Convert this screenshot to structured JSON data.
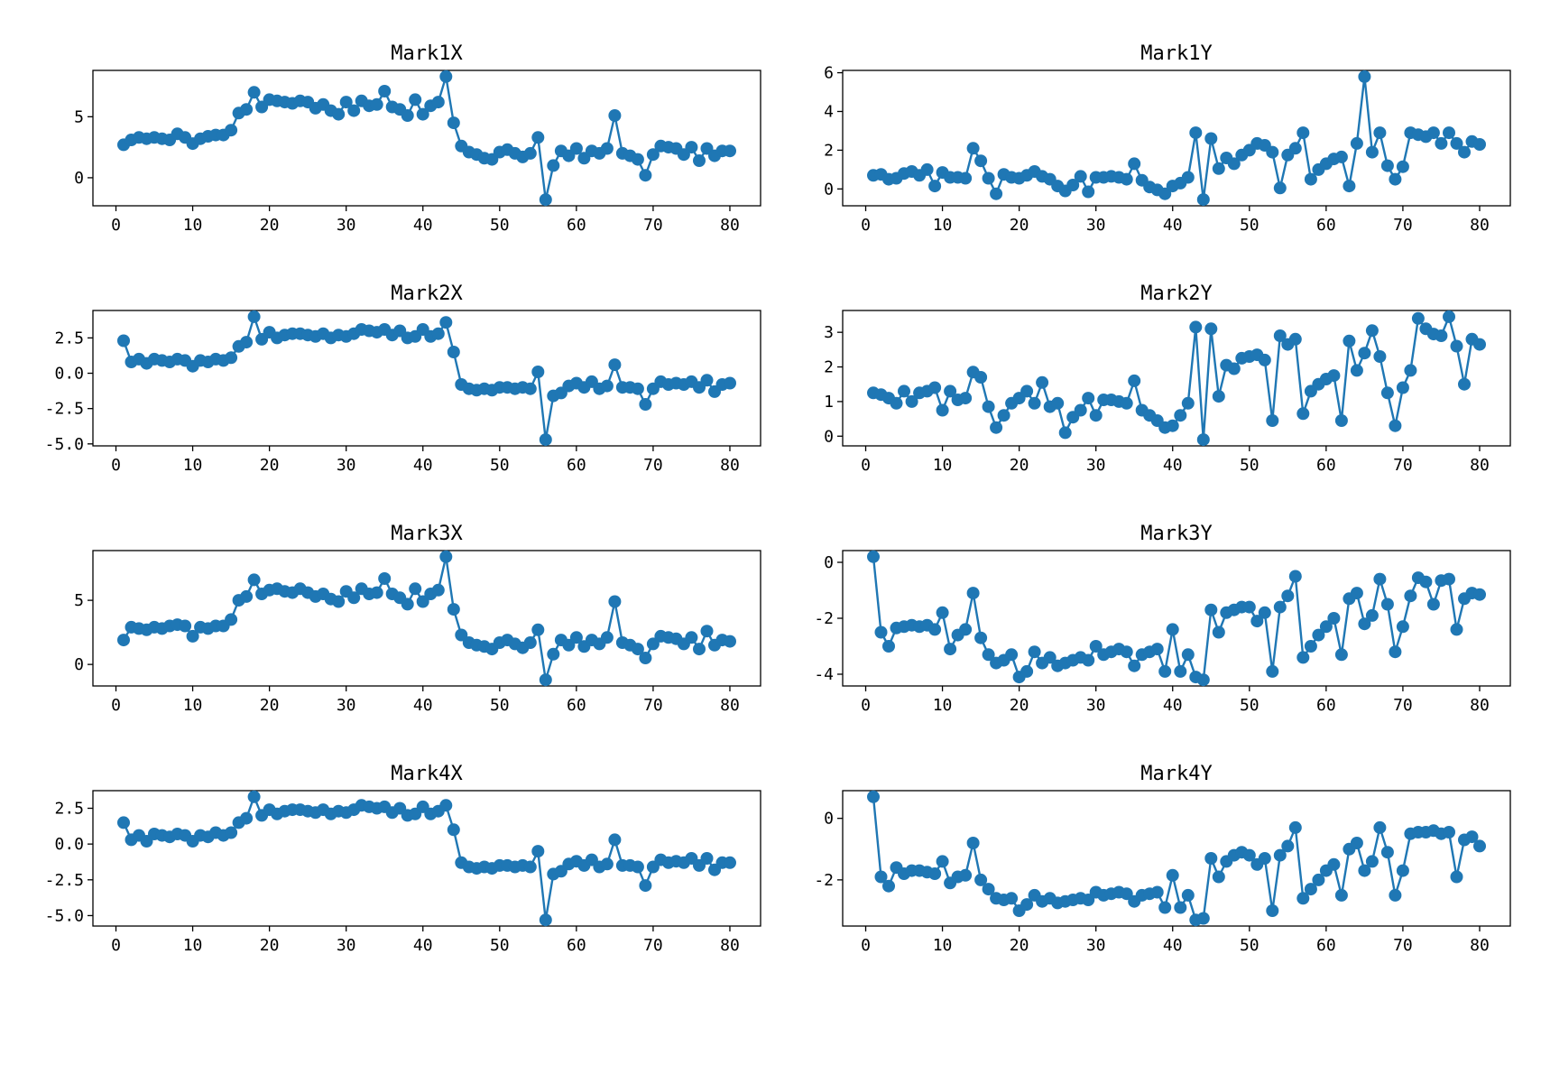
{
  "figure": {
    "background": "#ffffff",
    "line_color": "#1f77b4",
    "marker_shape": "circle",
    "marker_radius": 7,
    "line_width": 2.4,
    "grid": false,
    "legend": "none"
  },
  "chart_data": [
    {
      "type": "line",
      "title": "Mark1X",
      "xlabel": "",
      "ylabel": "",
      "x_start": 1,
      "x_step": 1,
      "xlim": [
        -3,
        84
      ],
      "xticks": [
        0,
        10,
        20,
        30,
        40,
        50,
        60,
        70,
        80
      ],
      "ylim": [
        -2.3,
        8.8
      ],
      "yticks": [
        0,
        5
      ],
      "ytick_labels": [
        "0",
        "5"
      ],
      "values": [
        2.7,
        3.1,
        3.3,
        3.2,
        3.3,
        3.2,
        3.1,
        3.6,
        3.3,
        2.8,
        3.2,
        3.4,
        3.5,
        3.5,
        3.9,
        5.3,
        5.6,
        7.0,
        5.8,
        6.4,
        6.3,
        6.2,
        6.1,
        6.3,
        6.2,
        5.7,
        6.0,
        5.5,
        5.2,
        6.2,
        5.5,
        6.3,
        5.9,
        6.0,
        7.1,
        5.8,
        5.6,
        5.1,
        6.4,
        5.2,
        5.9,
        6.2,
        8.3,
        4.5,
        2.6,
        2.1,
        1.9,
        1.6,
        1.5,
        2.1,
        2.3,
        2.0,
        1.7,
        2.0,
        3.3,
        -1.8,
        1.0,
        2.2,
        1.8,
        2.4,
        1.6,
        2.2,
        2.0,
        2.4,
        5.1,
        2.0,
        1.8,
        1.5,
        0.2,
        1.9,
        2.6,
        2.5,
        2.4,
        1.9,
        2.5,
        1.4,
        2.4,
        1.8,
        2.2,
        2.2
      ]
    },
    {
      "type": "line",
      "title": "Mark1Y",
      "xlabel": "",
      "ylabel": "",
      "x_start": 1,
      "x_step": 1,
      "xlim": [
        -3,
        84
      ],
      "xticks": [
        0,
        10,
        20,
        30,
        40,
        50,
        60,
        70,
        80
      ],
      "ylim": [
        -0.87,
        6.12
      ],
      "yticks": [
        0,
        2,
        4,
        6
      ],
      "ytick_labels": [
        "0",
        "2",
        "4",
        "6"
      ],
      "values": [
        0.7,
        0.75,
        0.5,
        0.55,
        0.8,
        0.9,
        0.7,
        1.0,
        0.15,
        0.85,
        0.6,
        0.6,
        0.55,
        2.1,
        1.45,
        0.55,
        -0.25,
        0.75,
        0.6,
        0.55,
        0.7,
        0.9,
        0.65,
        0.5,
        0.15,
        -0.1,
        0.2,
        0.65,
        -0.15,
        0.6,
        0.6,
        0.65,
        0.6,
        0.5,
        1.3,
        0.45,
        0.1,
        -0.05,
        -0.25,
        0.15,
        0.3,
        0.6,
        2.9,
        -0.55,
        2.6,
        1.05,
        1.6,
        1.3,
        1.75,
        2.0,
        2.35,
        2.25,
        1.9,
        0.05,
        1.75,
        2.1,
        2.9,
        0.5,
        1.0,
        1.3,
        1.55,
        1.65,
        0.15,
        2.35,
        5.8,
        1.9,
        2.9,
        1.2,
        0.5,
        1.15,
        2.9,
        2.8,
        2.7,
        2.9,
        2.35,
        2.9,
        2.35,
        1.9,
        2.45,
        2.3
      ]
    },
    {
      "type": "line",
      "title": "Mark2X",
      "xlabel": "",
      "ylabel": "",
      "x_start": 1,
      "x_step": 1,
      "xlim": [
        -3,
        84
      ],
      "xticks": [
        0,
        10,
        20,
        30,
        40,
        50,
        60,
        70,
        80
      ],
      "ylim": [
        -5.14,
        4.44
      ],
      "yticks": [
        2.5,
        0.0,
        -2.5,
        -5.0
      ],
      "ytick_labels": [
        "2.5",
        "0.0",
        "-2.5",
        "-5.0"
      ],
      "values": [
        2.3,
        0.8,
        1.0,
        0.7,
        1.0,
        0.9,
        0.8,
        1.0,
        0.9,
        0.5,
        0.9,
        0.8,
        1.0,
        0.9,
        1.1,
        1.9,
        2.2,
        4.0,
        2.4,
        2.9,
        2.5,
        2.7,
        2.8,
        2.8,
        2.7,
        2.6,
        2.8,
        2.5,
        2.7,
        2.6,
        2.8,
        3.1,
        3.0,
        2.9,
        3.1,
        2.7,
        3.0,
        2.5,
        2.6,
        3.1,
        2.6,
        2.8,
        3.6,
        1.5,
        -0.8,
        -1.1,
        -1.2,
        -1.1,
        -1.2,
        -1.0,
        -1.0,
        -1.1,
        -1.0,
        -1.1,
        0.1,
        -4.7,
        -1.6,
        -1.4,
        -0.9,
        -0.7,
        -1.0,
        -0.6,
        -1.1,
        -0.9,
        0.6,
        -1.0,
        -1.0,
        -1.1,
        -2.2,
        -1.1,
        -0.6,
        -0.8,
        -0.7,
        -0.8,
        -0.6,
        -1.0,
        -0.5,
        -1.3,
        -0.8,
        -0.7
      ]
    },
    {
      "type": "line",
      "title": "Mark2Y",
      "xlabel": "",
      "ylabel": "",
      "x_start": 1,
      "x_step": 1,
      "xlim": [
        -3,
        84
      ],
      "xticks": [
        0,
        10,
        20,
        30,
        40,
        50,
        60,
        70,
        80
      ],
      "ylim": [
        -0.28,
        3.63
      ],
      "yticks": [
        0,
        1,
        2,
        3
      ],
      "ytick_labels": [
        "0",
        "1",
        "2",
        "3"
      ],
      "values": [
        1.25,
        1.2,
        1.1,
        0.95,
        1.3,
        1.0,
        1.25,
        1.3,
        1.4,
        0.75,
        1.3,
        1.05,
        1.1,
        1.85,
        1.7,
        0.85,
        0.25,
        0.6,
        0.95,
        1.1,
        1.3,
        0.95,
        1.55,
        0.85,
        0.95,
        0.1,
        0.55,
        0.75,
        1.1,
        0.6,
        1.05,
        1.05,
        1.0,
        0.95,
        1.6,
        0.75,
        0.6,
        0.45,
        0.25,
        0.3,
        0.6,
        0.95,
        3.15,
        -0.1,
        3.1,
        1.15,
        2.05,
        1.95,
        2.25,
        2.3,
        2.35,
        2.2,
        0.45,
        2.9,
        2.65,
        2.8,
        0.65,
        1.3,
        1.5,
        1.65,
        1.75,
        0.45,
        2.75,
        1.9,
        2.4,
        3.05,
        2.3,
        1.25,
        0.3,
        1.4,
        1.9,
        3.4,
        3.1,
        2.95,
        2.9,
        3.45,
        2.6,
        1.5,
        2.8,
        2.65
      ]
    },
    {
      "type": "line",
      "title": "Mark3X",
      "xlabel": "",
      "ylabel": "",
      "x_start": 1,
      "x_step": 1,
      "xlim": [
        -3,
        84
      ],
      "xticks": [
        0,
        10,
        20,
        30,
        40,
        50,
        60,
        70,
        80
      ],
      "ylim": [
        -1.68,
        8.88
      ],
      "yticks": [
        0,
        5
      ],
      "ytick_labels": [
        "0",
        "5"
      ],
      "values": [
        1.9,
        2.9,
        2.8,
        2.7,
        2.9,
        2.8,
        3.0,
        3.1,
        3.0,
        2.2,
        2.9,
        2.8,
        3.0,
        3.0,
        3.5,
        5.0,
        5.3,
        6.6,
        5.5,
        5.8,
        5.9,
        5.7,
        5.6,
        5.9,
        5.6,
        5.3,
        5.5,
        5.1,
        4.9,
        5.7,
        5.2,
        5.9,
        5.5,
        5.6,
        6.7,
        5.5,
        5.2,
        4.7,
        5.9,
        4.9,
        5.5,
        5.8,
        8.4,
        4.3,
        2.3,
        1.7,
        1.5,
        1.4,
        1.2,
        1.7,
        1.9,
        1.6,
        1.3,
        1.7,
        2.7,
        -1.2,
        0.8,
        1.9,
        1.5,
        2.1,
        1.4,
        1.9,
        1.6,
        2.1,
        4.9,
        1.7,
        1.5,
        1.2,
        0.5,
        1.6,
        2.2,
        2.1,
        2.0,
        1.6,
        2.1,
        1.2,
        2.6,
        1.5,
        1.9,
        1.8
      ]
    },
    {
      "type": "line",
      "title": "Mark3Y",
      "xlabel": "",
      "ylabel": "",
      "x_start": 1,
      "x_step": 1,
      "xlim": [
        -3,
        84
      ],
      "xticks": [
        0,
        10,
        20,
        30,
        40,
        50,
        60,
        70,
        80
      ],
      "ylim": [
        -4.42,
        0.42
      ],
      "yticks": [
        0,
        -2,
        -4
      ],
      "ytick_labels": [
        "0",
        "-2",
        "-4"
      ],
      "values": [
        0.2,
        -2.5,
        -3.0,
        -2.35,
        -2.3,
        -2.25,
        -2.3,
        -2.25,
        -2.4,
        -1.8,
        -3.1,
        -2.6,
        -2.4,
        -1.1,
        -2.7,
        -3.3,
        -3.6,
        -3.5,
        -3.3,
        -4.1,
        -3.9,
        -3.2,
        -3.6,
        -3.4,
        -3.7,
        -3.6,
        -3.5,
        -3.4,
        -3.5,
        -3.0,
        -3.3,
        -3.2,
        -3.1,
        -3.2,
        -3.7,
        -3.3,
        -3.2,
        -3.1,
        -3.9,
        -2.4,
        -3.9,
        -3.3,
        -4.1,
        -4.2,
        -1.7,
        -2.5,
        -1.8,
        -1.7,
        -1.6,
        -1.6,
        -2.1,
        -1.8,
        -3.9,
        -1.6,
        -1.2,
        -0.5,
        -3.4,
        -3.0,
        -2.6,
        -2.3,
        -2.0,
        -3.3,
        -1.3,
        -1.1,
        -2.2,
        -1.9,
        -0.6,
        -1.5,
        -3.2,
        -2.3,
        -1.2,
        -0.55,
        -0.7,
        -1.5,
        -0.65,
        -0.6,
        -2.4,
        -1.3,
        -1.1,
        -1.15
      ]
    },
    {
      "type": "line",
      "title": "Mark4X",
      "xlabel": "",
      "ylabel": "",
      "x_start": 1,
      "x_step": 1,
      "xlim": [
        -3,
        84
      ],
      "xticks": [
        0,
        10,
        20,
        30,
        40,
        50,
        60,
        70,
        80
      ],
      "ylim": [
        -5.73,
        3.73
      ],
      "yticks": [
        2.5,
        0.0,
        -2.5,
        -5.0
      ],
      "ytick_labels": [
        "2.5",
        "0.0",
        "-2.5",
        "-5.0"
      ],
      "values": [
        1.5,
        0.3,
        0.6,
        0.2,
        0.7,
        0.6,
        0.5,
        0.7,
        0.6,
        0.2,
        0.6,
        0.5,
        0.8,
        0.6,
        0.8,
        1.5,
        1.8,
        3.3,
        2.0,
        2.4,
        2.1,
        2.3,
        2.4,
        2.4,
        2.3,
        2.2,
        2.4,
        2.1,
        2.3,
        2.2,
        2.4,
        2.7,
        2.6,
        2.5,
        2.6,
        2.2,
        2.5,
        2.0,
        2.1,
        2.6,
        2.1,
        2.3,
        2.7,
        1.0,
        -1.3,
        -1.6,
        -1.7,
        -1.6,
        -1.7,
        -1.5,
        -1.5,
        -1.6,
        -1.5,
        -1.6,
        -0.5,
        -5.3,
        -2.1,
        -1.9,
        -1.4,
        -1.2,
        -1.5,
        -1.1,
        -1.6,
        -1.4,
        0.3,
        -1.5,
        -1.5,
        -1.6,
        -2.9,
        -1.6,
        -1.1,
        -1.3,
        -1.2,
        -1.3,
        -1.0,
        -1.5,
        -1.0,
        -1.8,
        -1.3,
        -1.3
      ]
    },
    {
      "type": "line",
      "title": "Mark4Y",
      "xlabel": "",
      "ylabel": "",
      "x_start": 1,
      "x_step": 1,
      "xlim": [
        -3,
        84
      ],
      "xticks": [
        0,
        10,
        20,
        30,
        40,
        50,
        60,
        70,
        80
      ],
      "ylim": [
        -3.5,
        0.9
      ],
      "yticks": [
        0,
        -2
      ],
      "ytick_labels": [
        "0",
        "-2"
      ],
      "values": [
        0.7,
        -1.9,
        -2.2,
        -1.6,
        -1.8,
        -1.7,
        -1.7,
        -1.75,
        -1.8,
        -1.4,
        -2.1,
        -1.9,
        -1.85,
        -0.8,
        -2.0,
        -2.3,
        -2.6,
        -2.65,
        -2.6,
        -3.0,
        -2.8,
        -2.5,
        -2.7,
        -2.6,
        -2.75,
        -2.7,
        -2.65,
        -2.6,
        -2.65,
        -2.4,
        -2.5,
        -2.45,
        -2.4,
        -2.45,
        -2.7,
        -2.5,
        -2.45,
        -2.4,
        -2.9,
        -1.85,
        -2.9,
        -2.5,
        -3.3,
        -3.25,
        -1.3,
        -1.9,
        -1.4,
        -1.2,
        -1.1,
        -1.2,
        -1.5,
        -1.3,
        -3.0,
        -1.2,
        -0.9,
        -0.3,
        -2.6,
        -2.3,
        -2.0,
        -1.7,
        -1.5,
        -2.5,
        -1.0,
        -0.8,
        -1.7,
        -1.4,
        -0.3,
        -1.1,
        -2.5,
        -1.7,
        -0.5,
        -0.45,
        -0.45,
        -0.4,
        -0.5,
        -0.45,
        -1.9,
        -0.7,
        -0.6,
        -0.9
      ]
    }
  ]
}
